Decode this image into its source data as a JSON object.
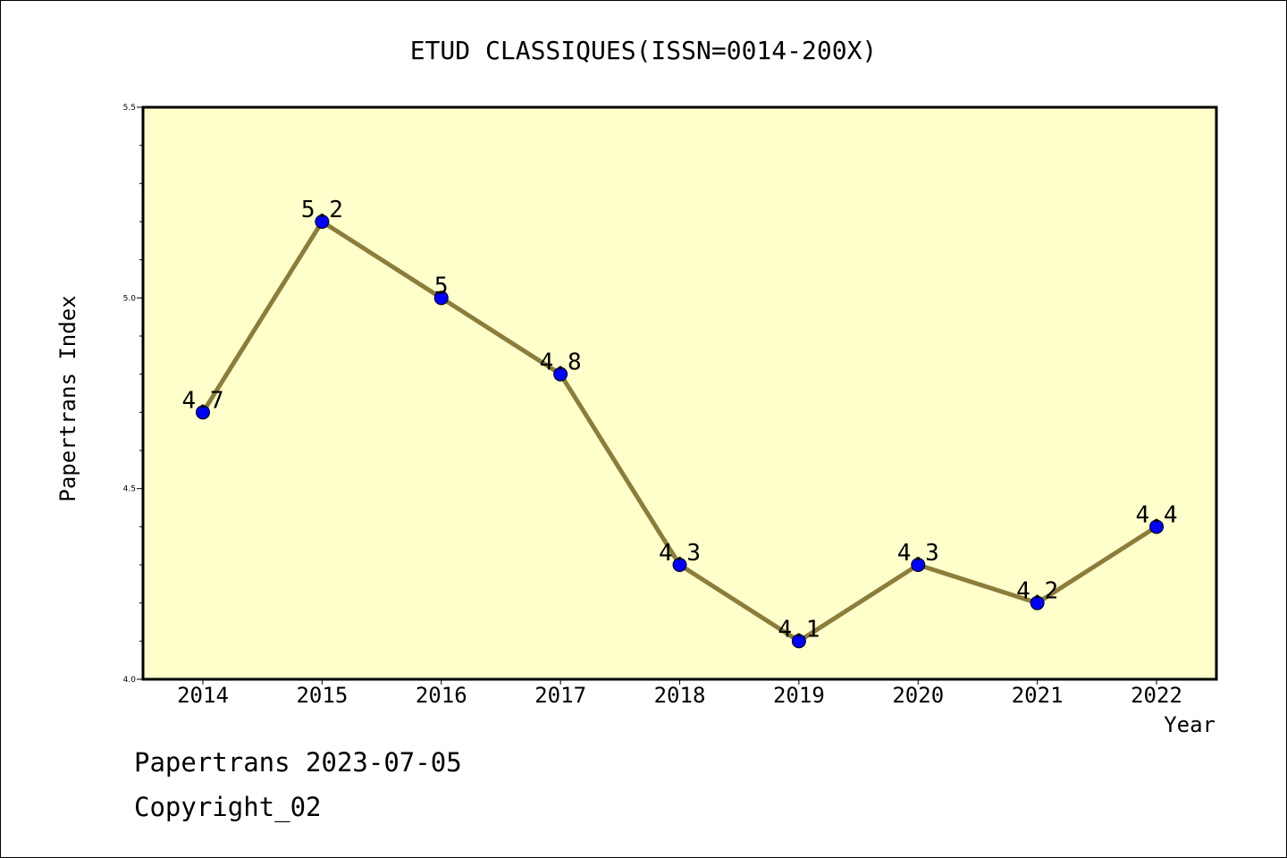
{
  "chart_data": {
    "type": "line",
    "title": "ETUD CLASSIQUES(ISSN=0014-200X)",
    "xlabel": "Year",
    "ylabel": "Papertrans Index",
    "categories": [
      "2014",
      "2015",
      "2016",
      "2017",
      "2018",
      "2019",
      "2020",
      "2021",
      "2022"
    ],
    "series": [
      {
        "values": [
          4.7,
          5.2,
          5.0,
          4.8,
          4.3,
          4.1,
          4.3,
          4.2,
          4.4
        ]
      }
    ],
    "data_labels": [
      "4.7",
      "5.2",
      "5",
      "4.8",
      "4.3",
      "4.1",
      "4.3",
      "4.2",
      "4.4"
    ],
    "ylim": [
      4.0,
      5.5
    ],
    "yticks": [
      "4.0",
      "4.5",
      "5.0",
      "5.5"
    ],
    "grid": false,
    "colors": {
      "plot_background": "#ffffcc",
      "line": "#8b7d3a",
      "marker": "#0000ff"
    }
  },
  "footer": {
    "date_line": "Papertrans 2023-07-05",
    "copyright": "Copyright_02"
  }
}
